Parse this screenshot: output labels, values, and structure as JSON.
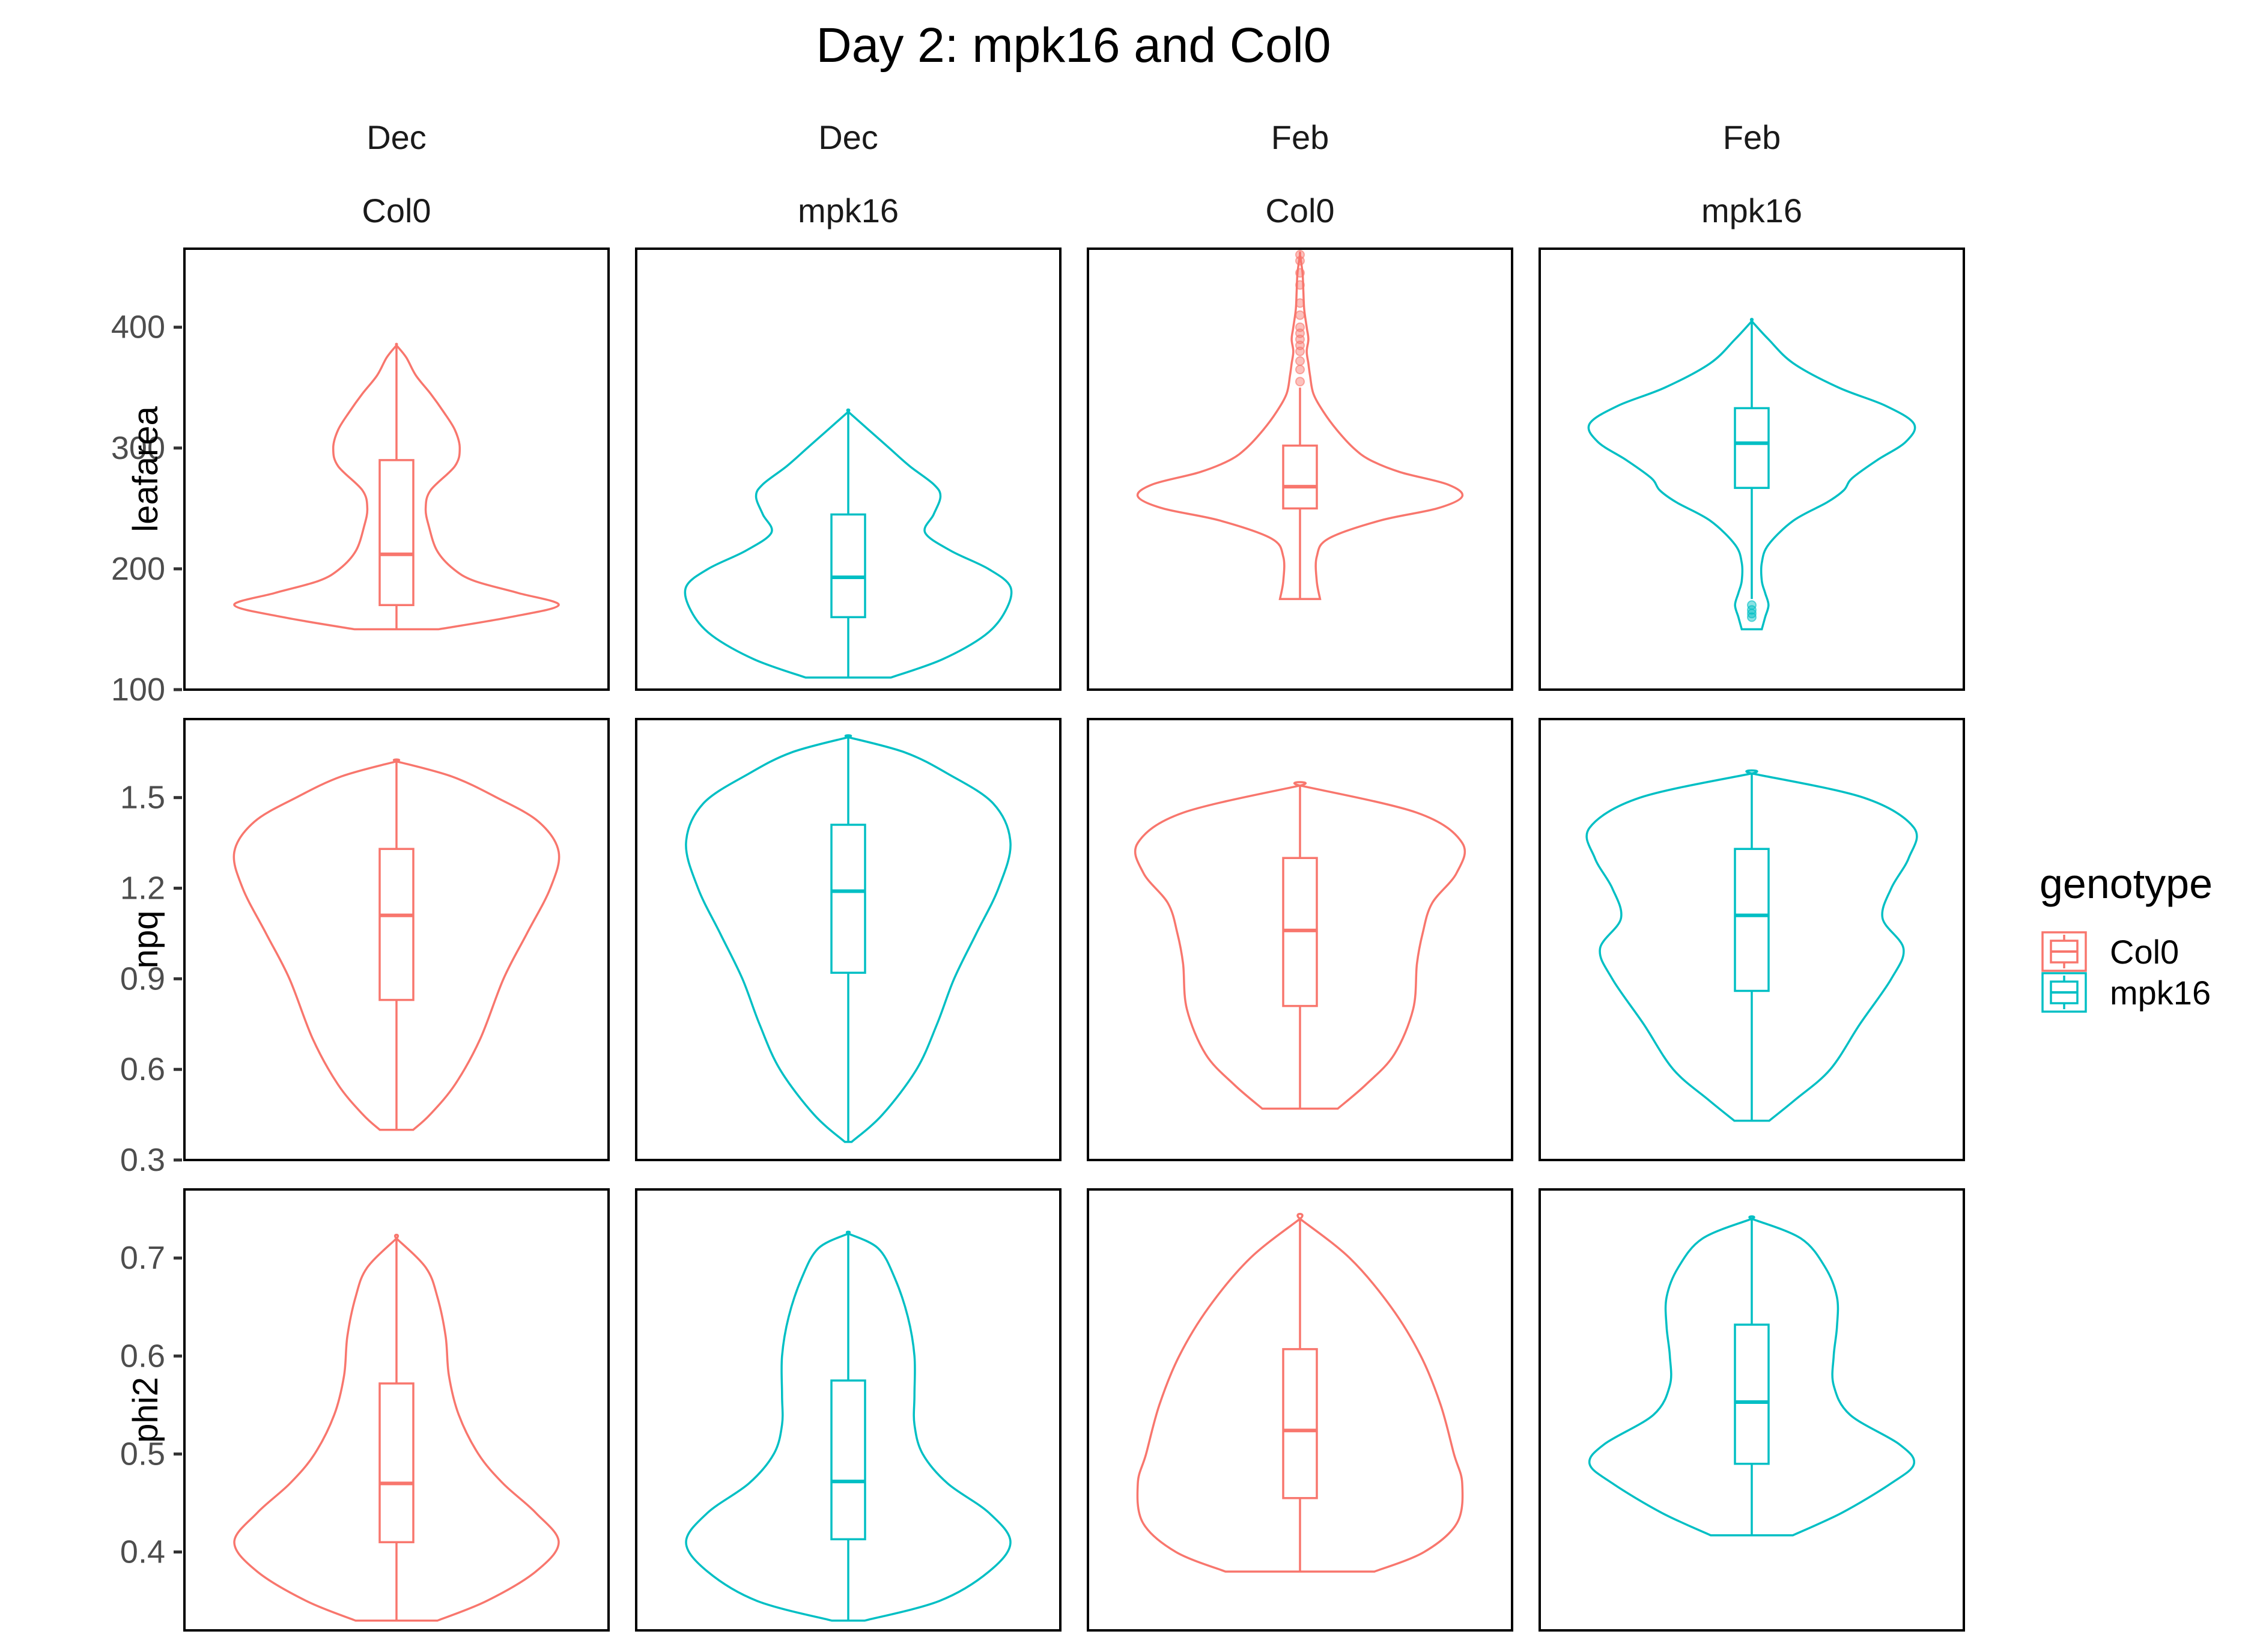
{
  "chart_data": {
    "type": "violin",
    "title": "Day 2: mpk16 and Col0",
    "legend": {
      "title": "genotype",
      "placement": "right",
      "entries": [
        {
          "name": "Col0",
          "color": "#F8766D"
        },
        {
          "name": "mpk16",
          "color": "#00BFC4"
        }
      ]
    },
    "facet_columns": [
      {
        "month": "Dec",
        "genotype": "Col0",
        "color": "#F8766D"
      },
      {
        "month": "Dec",
        "genotype": "mpk16",
        "color": "#00BFC4"
      },
      {
        "month": "Feb",
        "genotype": "Col0",
        "color": "#F8766D"
      },
      {
        "month": "Feb",
        "genotype": "mpk16",
        "color": "#00BFC4"
      }
    ],
    "facet_rows": [
      {
        "variable": "leafarea",
        "ylim": [
          100,
          465
        ],
        "ticks": [
          100,
          200,
          300,
          400
        ],
        "tick_labels": [
          "100",
          "200",
          "300",
          "400"
        ],
        "panels": [
          {
            "box": {
              "lower_whisker": 150,
              "q1": 170,
              "median": 212,
              "q3": 290,
              "upper_whisker": 385
            },
            "outliers": [],
            "density": [
              [
                150,
                0.26
              ],
              [
                160,
                0.7
              ],
              [
                170,
                1.0
              ],
              [
                180,
                0.75
              ],
              [
                190,
                0.48
              ],
              [
                200,
                0.35
              ],
              [
                215,
                0.25
              ],
              [
                235,
                0.2
              ],
              [
                250,
                0.18
              ],
              [
                265,
                0.21
              ],
              [
                285,
                0.36
              ],
              [
                300,
                0.39
              ],
              [
                315,
                0.36
              ],
              [
                330,
                0.29
              ],
              [
                345,
                0.21
              ],
              [
                360,
                0.12
              ],
              [
                375,
                0.06
              ],
              [
                385,
                0.0
              ]
            ]
          },
          {
            "box": {
              "lower_whisker": 110,
              "q1": 160,
              "median": 193,
              "q3": 245,
              "upper_whisker": 330
            },
            "outliers": [],
            "density": [
              [
                110,
                0.25
              ],
              [
                125,
                0.55
              ],
              [
                145,
                0.8
              ],
              [
                165,
                0.92
              ],
              [
                185,
                0.95
              ],
              [
                200,
                0.82
              ],
              [
                215,
                0.6
              ],
              [
                230,
                0.45
              ],
              [
                245,
                0.5
              ],
              [
                260,
                0.54
              ],
              [
                270,
                0.5
              ],
              [
                285,
                0.36
              ],
              [
                300,
                0.24
              ],
              [
                315,
                0.12
              ],
              [
                330,
                0.0
              ]
            ]
          },
          {
            "box": {
              "lower_whisker": 175,
              "q1": 250,
              "median": 268,
              "q3": 302,
              "upper_whisker": 350
            },
            "outliers": [
              355,
              365,
              372,
              380,
              385,
              390,
              395,
              400,
              410,
              420,
              435,
              445,
              455,
              460
            ],
            "density": [
              [
                175,
                0.12
              ],
              [
                190,
                0.1
              ],
              [
                210,
                0.1
              ],
              [
                225,
                0.17
              ],
              [
                240,
                0.48
              ],
              [
                250,
                0.82
              ],
              [
                260,
                0.97
              ],
              [
                270,
                0.88
              ],
              [
                280,
                0.6
              ],
              [
                290,
                0.42
              ],
              [
                300,
                0.32
              ],
              [
                315,
                0.22
              ],
              [
                330,
                0.14
              ],
              [
                345,
                0.08
              ],
              [
                360,
                0.06
              ],
              [
                370,
                0.05
              ],
              [
                380,
                0.04
              ],
              [
                390,
                0.05
              ],
              [
                400,
                0.04
              ],
              [
                415,
                0.025
              ],
              [
                430,
                0.02
              ],
              [
                445,
                0.015
              ],
              [
                460,
                0.0
              ]
            ]
          },
          {
            "box": {
              "lower_whisker": 175,
              "q1": 267,
              "median": 304,
              "q3": 333,
              "upper_whisker": 405
            },
            "outliers": [
              160,
              163,
              166,
              170
            ],
            "density": [
              [
                150,
                0.06
              ],
              [
                160,
                0.08
              ],
              [
                170,
                0.1
              ],
              [
                180,
                0.08
              ],
              [
                190,
                0.06
              ],
              [
                205,
                0.06
              ],
              [
                220,
                0.1
              ],
              [
                240,
                0.25
              ],
              [
                255,
                0.45
              ],
              [
                265,
                0.55
              ],
              [
                275,
                0.6
              ],
              [
                290,
                0.75
              ],
              [
                305,
                0.92
              ],
              [
                320,
                0.97
              ],
              [
                335,
                0.8
              ],
              [
                350,
                0.52
              ],
              [
                370,
                0.25
              ],
              [
                390,
                0.1
              ],
              [
                405,
                0.0
              ]
            ]
          }
        ]
      },
      {
        "variable": "npq",
        "ylim": [
          0.3,
          1.76
        ],
        "ticks": [
          0.3,
          0.6,
          0.9,
          1.2,
          1.5
        ],
        "tick_labels": [
          "0.3",
          "0.6",
          "0.9",
          "1.2",
          "1.5"
        ],
        "panels": [
          {
            "box": {
              "lower_whisker": 0.4,
              "q1": 0.83,
              "median": 1.11,
              "q3": 1.33,
              "upper_whisker": 1.62
            },
            "outliers": [],
            "density": [
              [
                0.4,
                0.1
              ],
              [
                0.45,
                0.2
              ],
              [
                0.55,
                0.35
              ],
              [
                0.7,
                0.5
              ],
              [
                0.9,
                0.64
              ],
              [
                1.05,
                0.78
              ],
              [
                1.2,
                0.92
              ],
              [
                1.32,
                0.97
              ],
              [
                1.42,
                0.85
              ],
              [
                1.5,
                0.6
              ],
              [
                1.57,
                0.33
              ],
              [
                1.62,
                0.0
              ]
            ]
          },
          {
            "box": {
              "lower_whisker": 0.36,
              "q1": 0.92,
              "median": 1.19,
              "q3": 1.41,
              "upper_whisker": 1.7
            },
            "outliers": [],
            "density": [
              [
                0.36,
                0.02
              ],
              [
                0.45,
                0.2
              ],
              [
                0.6,
                0.4
              ],
              [
                0.75,
                0.52
              ],
              [
                0.9,
                0.62
              ],
              [
                1.05,
                0.75
              ],
              [
                1.2,
                0.88
              ],
              [
                1.35,
                0.95
              ],
              [
                1.48,
                0.85
              ],
              [
                1.58,
                0.58
              ],
              [
                1.65,
                0.33
              ],
              [
                1.7,
                0.0
              ]
            ]
          },
          {
            "box": {
              "lower_whisker": 0.47,
              "q1": 0.81,
              "median": 1.06,
              "q3": 1.3,
              "upper_whisker": 1.54
            },
            "outliers": [],
            "density": [
              [
                0.47,
                0.2
              ],
              [
                0.55,
                0.35
              ],
              [
                0.65,
                0.5
              ],
              [
                0.8,
                0.6
              ],
              [
                0.95,
                0.62
              ],
              [
                1.05,
                0.65
              ],
              [
                1.15,
                0.7
              ],
              [
                1.25,
                0.83
              ],
              [
                1.35,
                0.86
              ],
              [
                1.45,
                0.62
              ],
              [
                1.54,
                0.0
              ]
            ]
          },
          {
            "box": {
              "lower_whisker": 0.43,
              "q1": 0.86,
              "median": 1.11,
              "q3": 1.33,
              "upper_whisker": 1.58
            },
            "outliers": [],
            "density": [
              [
                0.43,
                0.1
              ],
              [
                0.5,
                0.25
              ],
              [
                0.6,
                0.45
              ],
              [
                0.75,
                0.62
              ],
              [
                0.9,
                0.8
              ],
              [
                1.0,
                0.87
              ],
              [
                1.1,
                0.75
              ],
              [
                1.2,
                0.8
              ],
              [
                1.3,
                0.9
              ],
              [
                1.4,
                0.93
              ],
              [
                1.5,
                0.64
              ],
              [
                1.58,
                0.0
              ]
            ]
          }
        ]
      },
      {
        "variable": "phi2",
        "ylim": [
          0.32,
          0.77
        ],
        "ticks": [
          0.4,
          0.5,
          0.6,
          0.7
        ],
        "tick_labels": [
          "0.4",
          "0.5",
          "0.6",
          "0.7"
        ],
        "panels": [
          {
            "box": {
              "lower_whisker": 0.33,
              "q1": 0.41,
              "median": 0.47,
              "q3": 0.572,
              "upper_whisker": 0.72
            },
            "outliers": [],
            "density": [
              [
                0.33,
                0.25
              ],
              [
                0.35,
                0.55
              ],
              [
                0.38,
                0.85
              ],
              [
                0.41,
                0.99
              ],
              [
                0.44,
                0.85
              ],
              [
                0.47,
                0.65
              ],
              [
                0.5,
                0.5
              ],
              [
                0.54,
                0.38
              ],
              [
                0.58,
                0.32
              ],
              [
                0.62,
                0.3
              ],
              [
                0.66,
                0.25
              ],
              [
                0.69,
                0.18
              ],
              [
                0.72,
                0.0
              ]
            ]
          },
          {
            "box": {
              "lower_whisker": 0.33,
              "q1": 0.413,
              "median": 0.472,
              "q3": 0.575,
              "upper_whisker": 0.725
            },
            "outliers": [],
            "density": [
              [
                0.33,
                0.1
              ],
              [
                0.35,
                0.55
              ],
              [
                0.38,
                0.85
              ],
              [
                0.41,
                0.98
              ],
              [
                0.44,
                0.85
              ],
              [
                0.47,
                0.6
              ],
              [
                0.5,
                0.45
              ],
              [
                0.53,
                0.4
              ],
              [
                0.56,
                0.4
              ],
              [
                0.6,
                0.4
              ],
              [
                0.64,
                0.36
              ],
              [
                0.68,
                0.28
              ],
              [
                0.71,
                0.18
              ],
              [
                0.725,
                0.0
              ]
            ]
          },
          {
            "box": {
              "lower_whisker": 0.38,
              "q1": 0.455,
              "median": 0.524,
              "q3": 0.607,
              "upper_whisker": 0.74
            },
            "outliers": [],
            "density": [
              [
                0.38,
                0.45
              ],
              [
                0.4,
                0.75
              ],
              [
                0.43,
                0.95
              ],
              [
                0.47,
                0.98
              ],
              [
                0.5,
                0.93
              ],
              [
                0.55,
                0.85
              ],
              [
                0.6,
                0.73
              ],
              [
                0.65,
                0.55
              ],
              [
                0.7,
                0.3
              ],
              [
                0.74,
                0.0
              ]
            ]
          },
          {
            "box": {
              "lower_whisker": 0.417,
              "q1": 0.49,
              "median": 0.553,
              "q3": 0.632,
              "upper_whisker": 0.74
            },
            "outliers": [],
            "density": [
              [
                0.417,
                0.25
              ],
              [
                0.44,
                0.55
              ],
              [
                0.47,
                0.85
              ],
              [
                0.49,
                0.99
              ],
              [
                0.51,
                0.9
              ],
              [
                0.54,
                0.6
              ],
              [
                0.57,
                0.5
              ],
              [
                0.6,
                0.5
              ],
              [
                0.63,
                0.52
              ],
              [
                0.66,
                0.52
              ],
              [
                0.69,
                0.45
              ],
              [
                0.72,
                0.3
              ],
              [
                0.74,
                0.0
              ]
            ]
          }
        ]
      }
    ]
  }
}
